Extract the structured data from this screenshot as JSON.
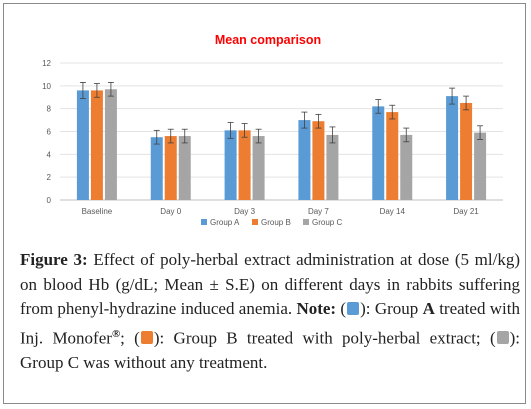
{
  "chart_data": {
    "type": "bar",
    "title": "Mean comparison",
    "categories": [
      "Baseline",
      "Day 0",
      "Day 3",
      "Day 7",
      "Day 14",
      "Day 21"
    ],
    "series": [
      {
        "name": "Group A",
        "color": "#5b9bd5",
        "values": [
          9.6,
          5.5,
          6.1,
          7.0,
          8.2,
          9.1
        ],
        "errors": [
          0.7,
          0.6,
          0.7,
          0.7,
          0.6,
          0.7
        ]
      },
      {
        "name": "Group B",
        "color": "#ed7d31",
        "values": [
          9.6,
          5.6,
          6.1,
          6.9,
          7.7,
          8.5
        ],
        "errors": [
          0.6,
          0.6,
          0.6,
          0.6,
          0.6,
          0.6
        ]
      },
      {
        "name": "Group C",
        "color": "#a5a5a5",
        "values": [
          9.7,
          5.6,
          5.6,
          5.7,
          5.7,
          5.9
        ],
        "errors": [
          0.6,
          0.6,
          0.6,
          0.7,
          0.6,
          0.6
        ]
      }
    ],
    "yticks": [
      0,
      2,
      4,
      6,
      8,
      10,
      12
    ],
    "ylim": [
      0,
      12
    ],
    "grid": true,
    "legend_position": "bottom"
  },
  "caption": {
    "figure_label": "Figure 3:",
    "text": " Effect of poly-herbal extract administration at dose (5 ml/kg) on blood Hb (g/dL; Mean ± S.E) on different days in rabbits suffering from phenyl-hydrazine induced anemia. ",
    "note_label": "Note:",
    "note_a_open": " (",
    "note_a_close": "): Group ",
    "group_a": "A",
    "note_a_text": " treated with Inj. Monofer",
    "registered": "®",
    "note_b_open": "; (",
    "note_b_close": "): Group B treated with poly-herbal extract; (",
    "note_c_close": "): Group C was without any treatment."
  }
}
